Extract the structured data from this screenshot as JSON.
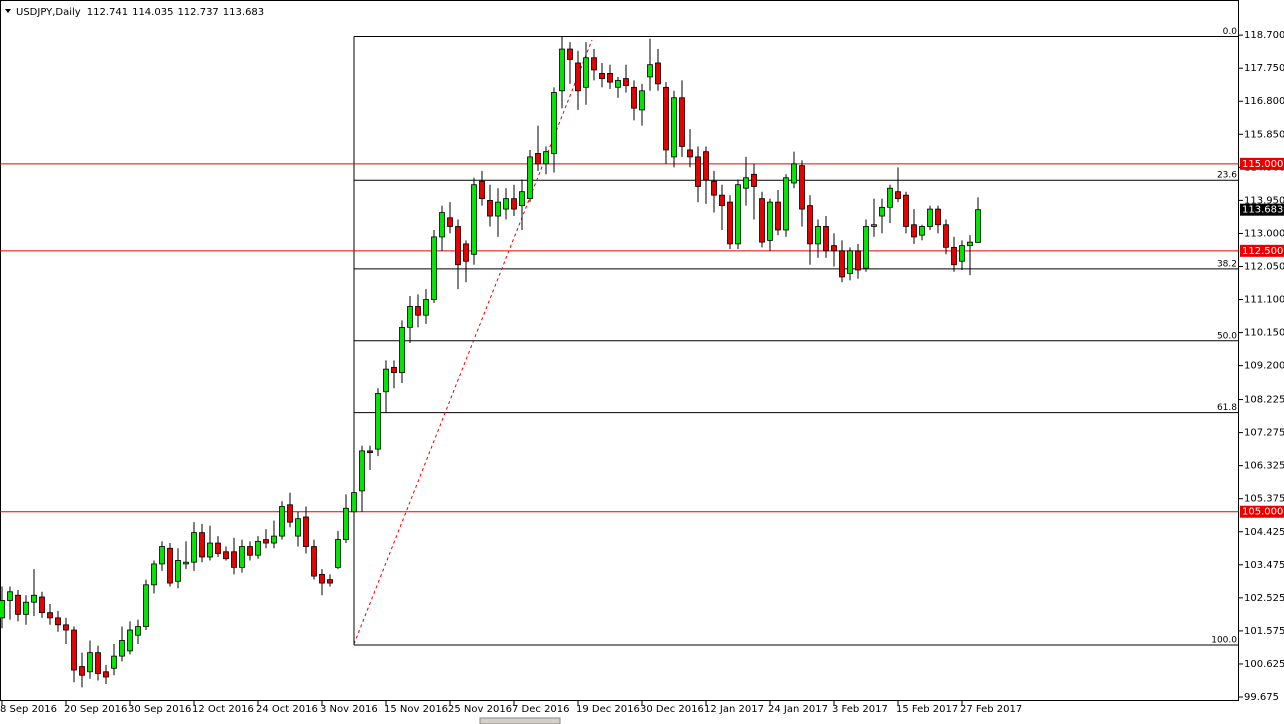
{
  "chart_data": {
    "type": "candlestick",
    "title": "USDJPY,Daily",
    "categories": [
      "8 Sep 2016",
      null,
      null,
      null,
      null,
      null,
      null,
      null,
      "20 Sep 2016",
      null,
      null,
      null,
      null,
      null,
      null,
      null,
      "30 Sep 2016",
      null,
      null,
      null,
      null,
      null,
      null,
      null,
      "12 Oct 2016",
      null,
      null,
      null,
      null,
      null,
      null,
      null,
      "24 Oct 2016",
      null,
      null,
      null,
      null,
      null,
      null,
      null,
      "3 Nov 2016",
      null,
      null,
      null,
      null,
      null,
      null,
      null,
      "15 Nov 2016",
      null,
      null,
      null,
      null,
      null,
      null,
      null,
      "25 Nov 2016",
      null,
      null,
      null,
      null,
      null,
      null,
      null,
      "7 Dec 2016",
      null,
      null,
      null,
      null,
      null,
      null,
      null,
      "19 Dec 2016",
      null,
      null,
      null,
      null,
      null,
      null,
      null,
      "30 Dec 2016",
      null,
      null,
      null,
      null,
      null,
      null,
      null,
      "12 Jan 2017",
      null,
      null,
      null,
      null,
      null,
      null,
      null,
      "24 Jan 2017",
      null,
      null,
      null,
      null,
      null,
      null,
      null,
      "3 Feb 2017",
      null,
      null,
      null,
      null,
      null,
      null,
      null,
      "15 Feb 2017",
      null,
      null,
      null,
      null,
      null,
      null,
      null,
      "27 Feb 2017",
      null,
      null
    ],
    "open": [
      101.95,
      102.45,
      102.6,
      102.05,
      102.4,
      102.55,
      102.1,
      101.95,
      101.75,
      101.6,
      100.55,
      100.4,
      100.95,
      100.4,
      100.5,
      100.85,
      101.0,
      101.45,
      101.7,
      102.9,
      103.5,
      103.95,
      103.0,
      103.5,
      103.55,
      104.4,
      103.7,
      104.1,
      103.85,
      103.85,
      103.4,
      104.0,
      103.75,
      104.2,
      104.1,
      104.3,
      105.2,
      104.3,
      104.85,
      104.0,
      103.2,
      103.05,
      103.4,
      104.2,
      105.0,
      105.6,
      106.75,
      106.8,
      108.45,
      109.15,
      109.0,
      110.3,
      110.9,
      110.65,
      111.1,
      112.9,
      113.45,
      113.2,
      112.7,
      112.4,
      114.5,
      113.95,
      113.5,
      113.7,
      114.0,
      113.8,
      114.0,
      115.3,
      115.0,
      115.3,
      117.1,
      118.3,
      117.9,
      117.2,
      118.05,
      117.6,
      117.6,
      117.2,
      117.45,
      117.2,
      116.55,
      117.5,
      117.9,
      117.2,
      115.2,
      116.9,
      115.4,
      115.2,
      115.35,
      114.5,
      114.1,
      113.9,
      112.7,
      114.3,
      114.7,
      114.0,
      112.8,
      113.9,
      113.1,
      114.45,
      114.95,
      113.8,
      112.7,
      113.2,
      112.65,
      112.5,
      111.85,
      112.5,
      112.0,
      113.2,
      113.5,
      113.75,
      114.2,
      114.1,
      113.25,
      112.95,
      113.2,
      113.7,
      113.25,
      112.6,
      112.2,
      112.65,
      112.741
    ],
    "high": [
      102.85,
      102.85,
      102.75,
      102.6,
      103.35,
      102.7,
      102.35,
      102.15,
      101.95,
      101.7,
      100.95,
      101.3,
      101.15,
      100.6,
      101.2,
      101.7,
      101.85,
      101.9,
      103.05,
      103.6,
      104.15,
      104.1,
      103.95,
      104.15,
      104.7,
      104.65,
      104.6,
      104.3,
      104.0,
      104.25,
      104.2,
      104.15,
      104.3,
      104.5,
      104.75,
      105.3,
      105.55,
      105.0,
      105.15,
      104.2,
      103.35,
      103.2,
      104.45,
      105.5,
      105.8,
      106.9,
      106.9,
      108.55,
      109.35,
      109.35,
      110.5,
      111.2,
      111.25,
      111.4,
      113.1,
      113.8,
      113.9,
      113.4,
      112.8,
      114.6,
      114.8,
      114.4,
      114.3,
      114.3,
      114.4,
      114.55,
      115.4,
      116.1,
      115.5,
      117.2,
      118.66,
      118.5,
      118.25,
      118.5,
      118.3,
      117.9,
      117.85,
      117.5,
      117.85,
      117.4,
      117.3,
      118.6,
      118.3,
      117.35,
      117.1,
      117.4,
      116.0,
      115.5,
      115.5,
      114.8,
      114.4,
      114.1,
      114.55,
      115.2,
      115.0,
      114.2,
      114.0,
      114.25,
      114.7,
      115.35,
      115.1,
      114.1,
      113.4,
      113.5,
      113.0,
      112.8,
      112.6,
      112.7,
      113.4,
      114.0,
      114.0,
      114.4,
      114.9,
      114.2,
      113.7,
      113.25,
      113.8,
      113.8,
      113.4,
      112.9,
      112.8,
      112.95,
      114.035
    ],
    "low": [
      101.65,
      101.9,
      101.85,
      101.75,
      102.0,
      101.95,
      101.75,
      101.55,
      101.2,
      100.1,
      99.95,
      100.2,
      100.15,
      100.05,
      100.3,
      100.7,
      100.9,
      101.2,
      101.6,
      102.65,
      103.3,
      102.85,
      102.8,
      103.35,
      103.3,
      103.55,
      103.6,
      103.7,
      103.6,
      103.2,
      103.25,
      103.6,
      103.65,
      103.95,
      103.95,
      104.2,
      104.55,
      104.0,
      103.8,
      103.05,
      102.6,
      102.85,
      103.35,
      104.1,
      101.19,
      105.0,
      106.2,
      106.6,
      107.85,
      108.55,
      108.7,
      109.85,
      110.3,
      110.4,
      111.0,
      112.5,
      113.0,
      111.4,
      111.6,
      112.1,
      113.8,
      113.2,
      112.9,
      113.4,
      113.5,
      113.1,
      113.9,
      114.8,
      114.7,
      114.75,
      116.6,
      117.3,
      116.55,
      116.7,
      117.4,
      117.2,
      117.15,
      116.9,
      117.05,
      116.25,
      116.1,
      117.1,
      117.1,
      115.0,
      114.9,
      115.2,
      114.9,
      113.9,
      113.85,
      113.6,
      113.1,
      112.55,
      112.55,
      113.8,
      113.4,
      112.6,
      112.5,
      112.95,
      112.9,
      114.3,
      113.2,
      112.1,
      112.3,
      112.3,
      112.05,
      111.6,
      111.65,
      111.7,
      111.9,
      112.9,
      113.0,
      113.3,
      113.9,
      113.0,
      112.7,
      112.8,
      113.1,
      113.0,
      112.4,
      111.9,
      111.95,
      111.8,
      112.737
    ],
    "close": [
      102.45,
      102.7,
      102.05,
      102.4,
      102.6,
      102.1,
      101.95,
      101.75,
      101.6,
      100.45,
      100.3,
      100.95,
      100.35,
      100.25,
      100.85,
      101.3,
      101.6,
      101.7,
      102.9,
      103.5,
      104.0,
      102.95,
      103.6,
      103.55,
      104.4,
      103.7,
      104.1,
      103.8,
      103.65,
      103.4,
      104.0,
      103.75,
      104.15,
      104.1,
      104.3,
      105.15,
      104.7,
      104.8,
      104.0,
      103.15,
      102.95,
      102.95,
      104.2,
      105.1,
      105.55,
      106.75,
      106.7,
      108.4,
      109.1,
      109.0,
      110.3,
      110.9,
      110.65,
      111.1,
      112.9,
      113.6,
      113.2,
      112.1,
      112.2,
      114.4,
      114.0,
      113.5,
      113.9,
      114.0,
      113.7,
      114.2,
      115.2,
      115.0,
      115.35,
      117.05,
      118.3,
      118.0,
      117.1,
      118.05,
      117.7,
      117.45,
      117.35,
      117.4,
      117.25,
      116.6,
      117.1,
      117.85,
      117.3,
      115.4,
      116.9,
      115.5,
      115.2,
      114.35,
      114.55,
      114.1,
      113.8,
      112.7,
      114.4,
      114.6,
      114.35,
      112.75,
      113.9,
      113.1,
      114.6,
      115.0,
      113.7,
      112.7,
      113.2,
      112.5,
      112.5,
      111.75,
      112.5,
      111.95,
      113.2,
      113.25,
      113.75,
      114.3,
      114.0,
      113.2,
      112.9,
      113.2,
      113.7,
      113.25,
      112.6,
      112.1,
      112.65,
      112.75,
      113.683
    ],
    "up_color": "#00e600",
    "down_color": "#e60000",
    "ylim": [
      99.56,
      119.71
    ],
    "yticks": [
      {
        "value": 118.7,
        "label": "118.700"
      },
      {
        "value": 117.75,
        "label": "117.750"
      },
      {
        "value": 116.8,
        "label": "116.800"
      },
      {
        "value": 115.85,
        "label": "115.850"
      },
      {
        "value": 114.9,
        "label": "114.900"
      },
      {
        "value": 113.95,
        "label": "113.950"
      },
      {
        "value": 113,
        "label": "113.000"
      },
      {
        "value": 112.05,
        "label": "112.050"
      },
      {
        "value": 111.1,
        "label": "111.100"
      },
      {
        "value": 110.15,
        "label": "110.150"
      },
      {
        "value": 109.2,
        "label": "109.200"
      },
      {
        "value": 108.225,
        "label": "108.225"
      },
      {
        "value": 107.275,
        "label": "107.275"
      },
      {
        "value": 106.325,
        "label": "106.325"
      },
      {
        "value": 105.375,
        "label": "105.375"
      },
      {
        "value": 104.425,
        "label": "104.425"
      },
      {
        "value": 103.475,
        "label": "103.475"
      },
      {
        "value": 102.525,
        "label": "102.525"
      },
      {
        "value": 101.575,
        "label": "101.575"
      },
      {
        "value": 100.625,
        "label": "100.625"
      },
      {
        "value": 99.675,
        "label": "99.675"
      }
    ],
    "levels": [
      {
        "value": 115,
        "label": "115.000"
      },
      {
        "value": 112.5,
        "label": "112.500"
      },
      {
        "value": 105,
        "label": "105.000"
      }
    ],
    "level_color": "#e60000",
    "fib_levels": [
      {
        "value": 118.66,
        "label": "0.0"
      },
      {
        "value": 114.53,
        "label": "23.6"
      },
      {
        "value": 111.98,
        "label": "38.2"
      },
      {
        "value": 109.915,
        "label": "50.0"
      },
      {
        "value": 107.85,
        "label": "61.8"
      },
      {
        "value": 101.17,
        "label": "100.0"
      }
    ]
  }
}
